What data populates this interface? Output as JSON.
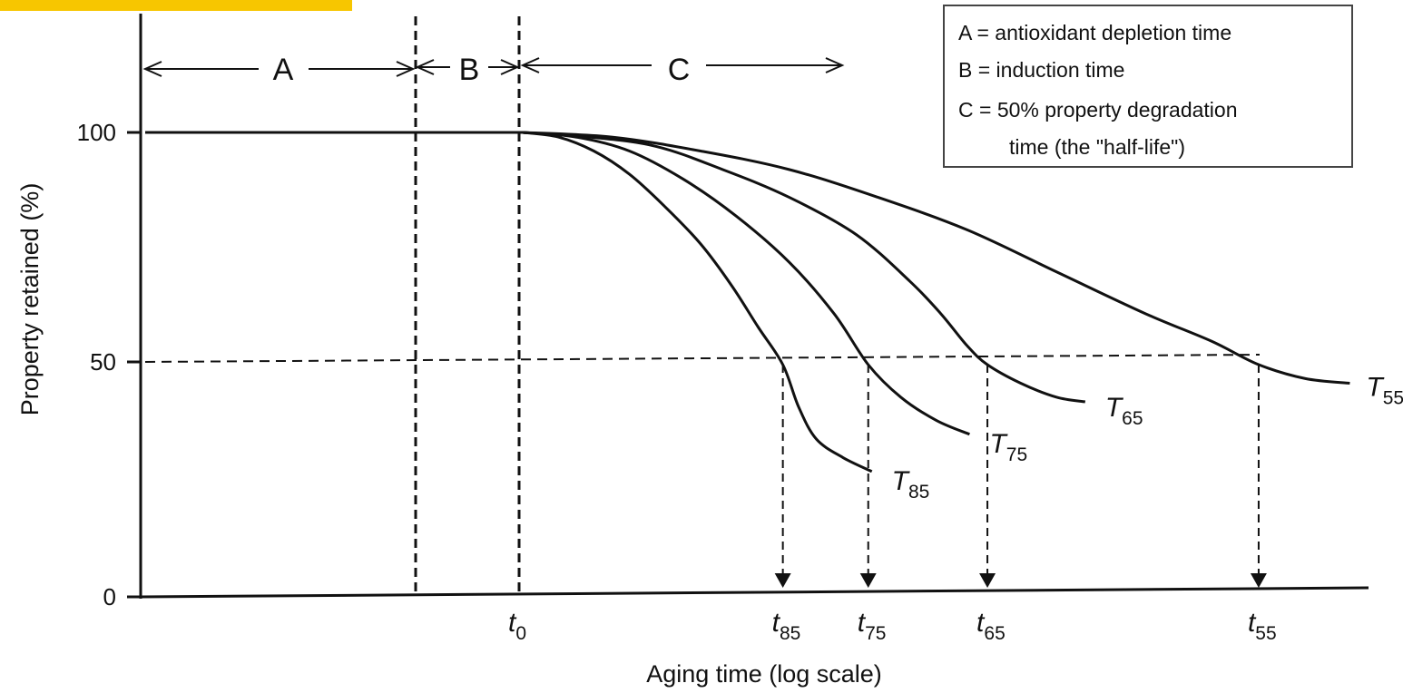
{
  "chart_data": {
    "type": "line",
    "xlabel": "Aging time (log scale)",
    "ylabel": "Property retained (%)",
    "ylim": [
      0,
      100
    ],
    "yticks": [
      "0",
      "50",
      "100"
    ],
    "x_scale": "log",
    "grid": false,
    "legend_position": "top-right",
    "x_ticks": [
      {
        "base": "t",
        "sub": "0"
      },
      {
        "base": "t",
        "sub": "85"
      },
      {
        "base": "t",
        "sub": "75"
      },
      {
        "base": "t",
        "sub": "65"
      },
      {
        "base": "t",
        "sub": "55"
      }
    ],
    "intervals": [
      {
        "label": "A",
        "description": "antioxidant depletion time"
      },
      {
        "label": "B",
        "description": "induction time"
      },
      {
        "label": "C",
        "description": "50% property degradation time (the \"half-life\")"
      }
    ],
    "series": [
      {
        "name": "T85",
        "base": "T",
        "sub": "85",
        "points": [
          [
            0.0,
            100
          ],
          [
            0.08,
            99
          ],
          [
            0.16,
            96
          ],
          [
            0.24,
            91
          ],
          [
            0.32,
            84
          ],
          [
            0.4,
            76
          ],
          [
            0.47,
            67
          ],
          [
            0.53,
            58
          ],
          [
            0.585,
            50
          ],
          [
            0.62,
            41
          ],
          [
            0.66,
            34
          ],
          [
            0.72,
            30
          ],
          [
            0.785,
            27
          ]
        ]
      },
      {
        "name": "T75",
        "base": "T",
        "sub": "75",
        "points": [
          [
            0.0,
            100
          ],
          [
            0.12,
            99
          ],
          [
            0.24,
            96
          ],
          [
            0.36,
            90
          ],
          [
            0.48,
            82
          ],
          [
            0.6,
            72
          ],
          [
            0.7,
            61
          ],
          [
            0.777,
            50
          ],
          [
            0.85,
            43
          ],
          [
            0.93,
            38
          ],
          [
            1.005,
            35
          ]
        ]
      },
      {
        "name": "T65",
        "base": "T",
        "sub": "65",
        "points": [
          [
            0.0,
            100
          ],
          [
            0.15,
            99
          ],
          [
            0.3,
            97
          ],
          [
            0.45,
            92
          ],
          [
            0.6,
            86
          ],
          [
            0.75,
            78
          ],
          [
            0.87,
            68
          ],
          [
            0.94,
            61
          ],
          [
            1.0,
            54
          ],
          [
            1.045,
            50
          ],
          [
            1.12,
            46
          ],
          [
            1.2,
            43
          ],
          [
            1.265,
            42
          ]
        ]
      },
      {
        "name": "T55",
        "base": "T",
        "sub": "55",
        "points": [
          [
            0.0,
            100
          ],
          [
            0.2,
            99
          ],
          [
            0.4,
            96
          ],
          [
            0.6,
            92
          ],
          [
            0.8,
            86
          ],
          [
            1.0,
            79
          ],
          [
            1.2,
            70
          ],
          [
            1.4,
            61
          ],
          [
            1.55,
            55
          ],
          [
            1.655,
            50
          ],
          [
            1.76,
            47
          ],
          [
            1.86,
            46
          ]
        ]
      }
    ]
  },
  "legend": {
    "line1": "A = antioxidant depletion time",
    "line2": "B = induction time",
    "line3": "C = 50% property degradation",
    "line4": "time (the \"half-life\")"
  },
  "colors": {
    "ink": "#111111",
    "highlight": "#f7c600",
    "legend_border": "#444444"
  }
}
